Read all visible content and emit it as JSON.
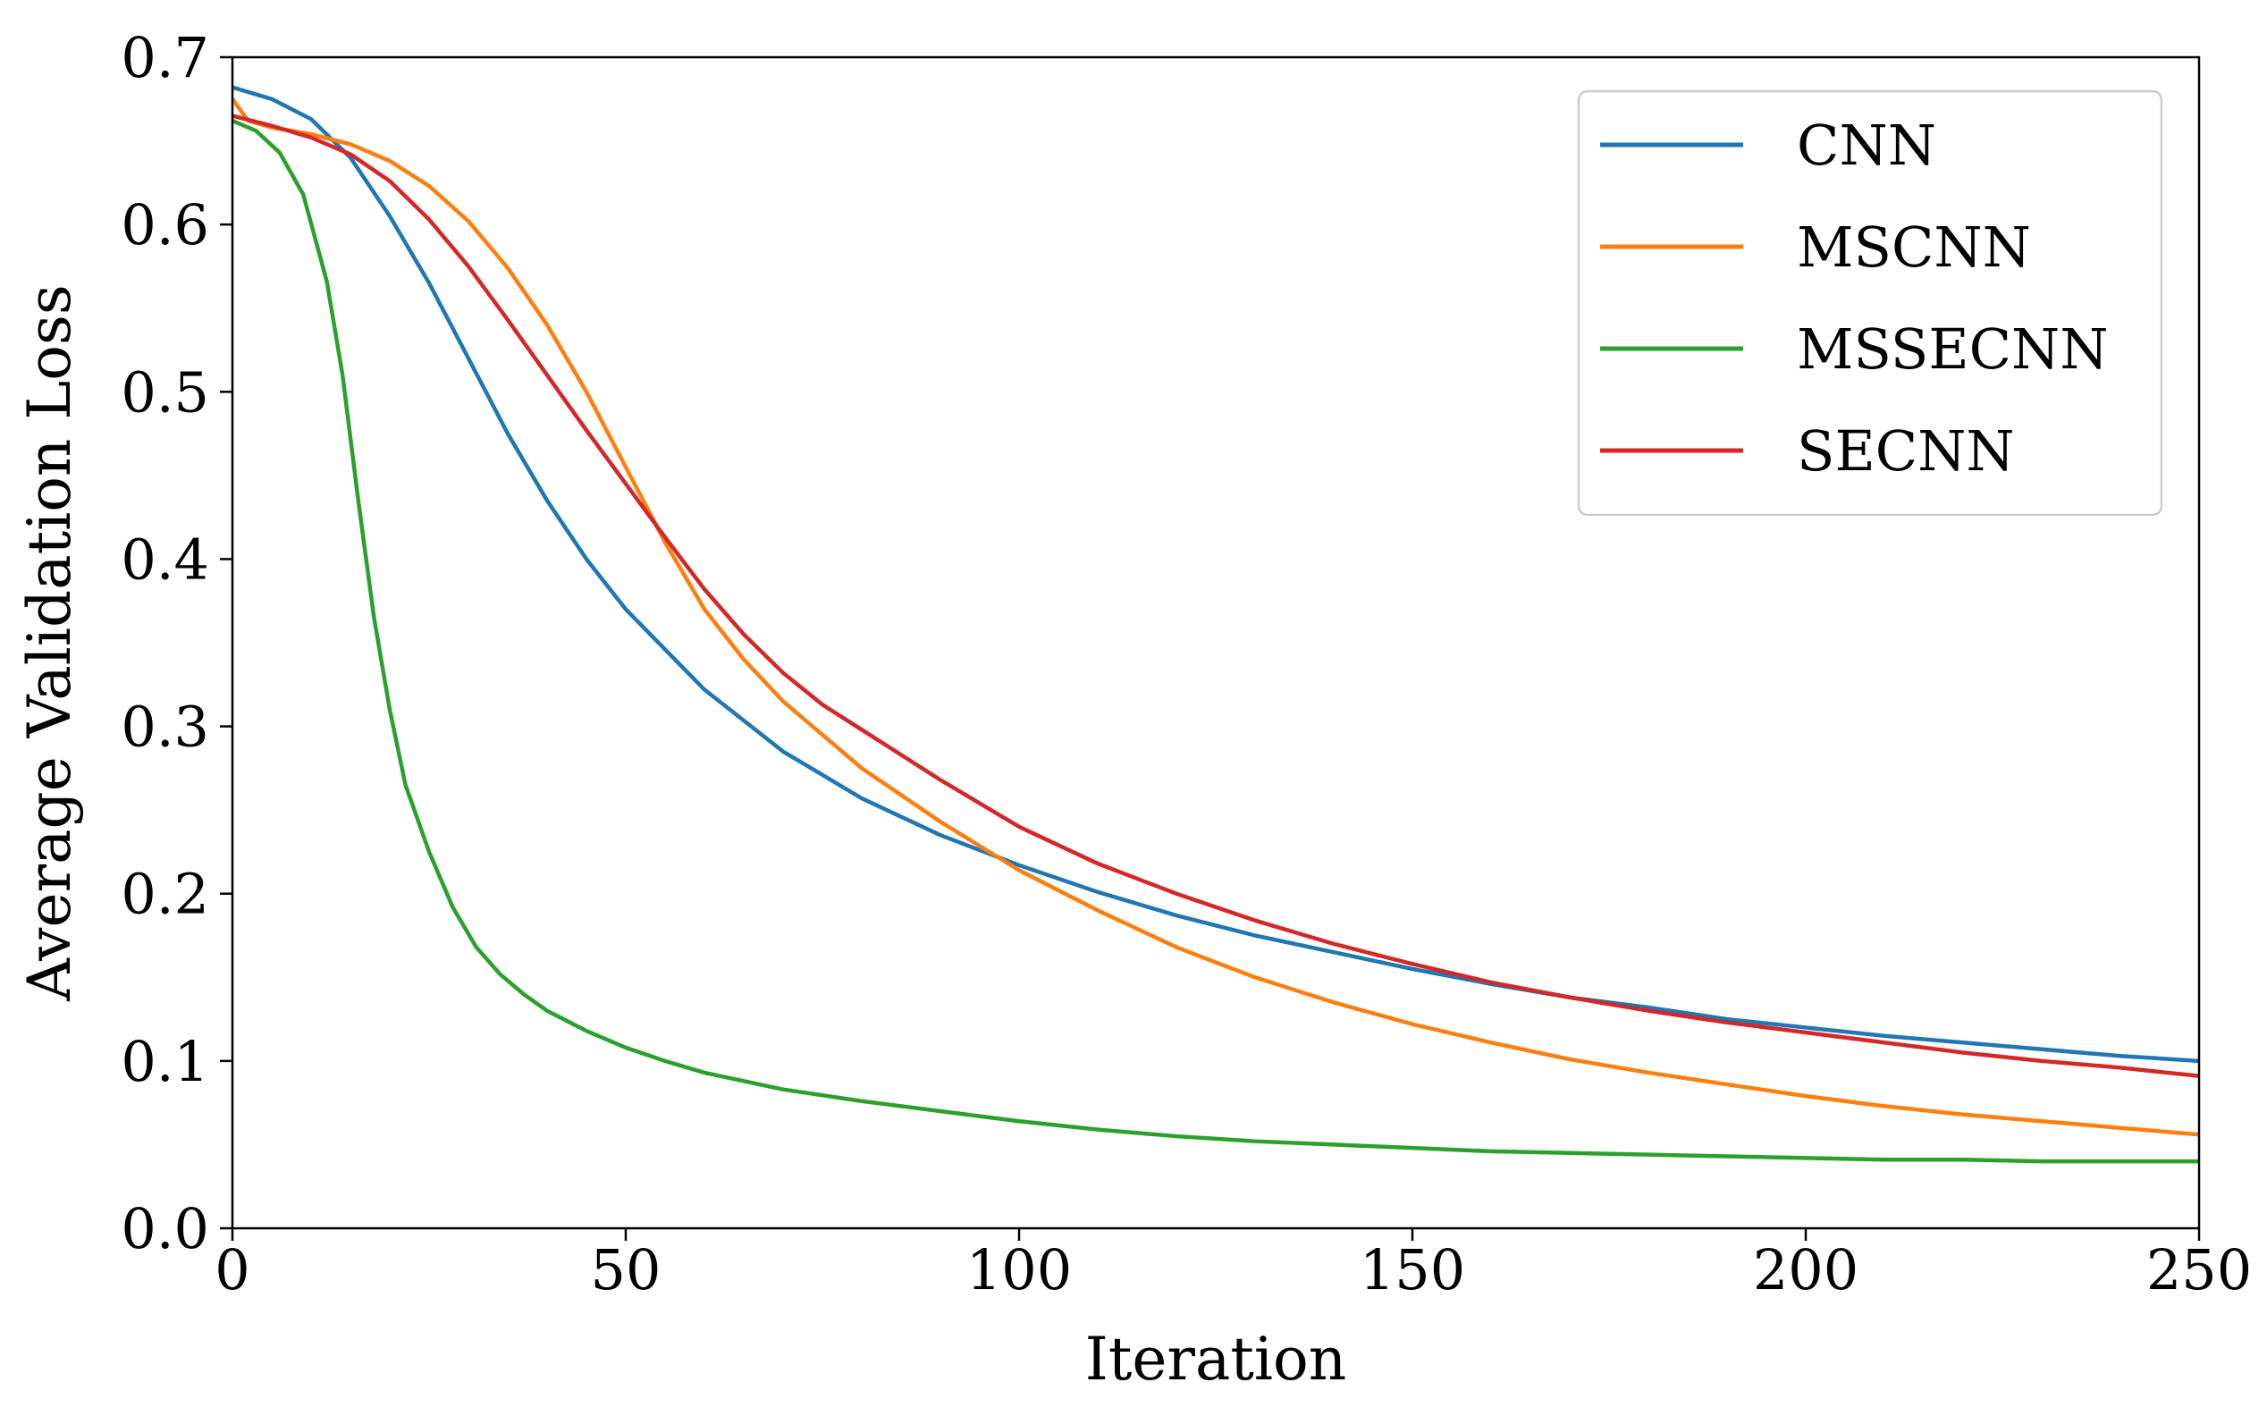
{
  "chart_data": {
    "type": "line",
    "title": "",
    "xlabel": "Iteration",
    "ylabel": "Average Validation Loss",
    "xlim": [
      0,
      250
    ],
    "ylim": [
      0,
      0.7
    ],
    "xticks": [
      0,
      50,
      100,
      150,
      200,
      250
    ],
    "xtick_labels": [
      "0",
      "50",
      "100",
      "150",
      "200",
      "250"
    ],
    "yticks": [
      0,
      0.1,
      0.2,
      0.3,
      0.4,
      0.5,
      0.6,
      0.7
    ],
    "ytick_labels": [
      "0.0",
      "0.1",
      "0.2",
      "0.3",
      "0.4",
      "0.5",
      "0.6",
      "0.7"
    ],
    "grid": false,
    "legend_position": "top-right",
    "series": [
      {
        "name": "CNN",
        "color": "#1f77b4",
        "x": [
          0,
          5,
          10,
          15,
          20,
          25,
          30,
          35,
          40,
          45,
          50,
          60,
          70,
          80,
          90,
          100,
          110,
          120,
          130,
          140,
          150,
          160,
          170,
          180,
          190,
          200,
          210,
          220,
          230,
          240,
          250
        ],
        "y": [
          0.682,
          0.675,
          0.663,
          0.64,
          0.605,
          0.565,
          0.52,
          0.475,
          0.435,
          0.4,
          0.37,
          0.322,
          0.285,
          0.257,
          0.235,
          0.217,
          0.201,
          0.187,
          0.175,
          0.165,
          0.155,
          0.146,
          0.138,
          0.132,
          0.125,
          0.12,
          0.115,
          0.111,
          0.107,
          0.103,
          0.1
        ]
      },
      {
        "name": "MSCNN",
        "color": "#ff7f0e",
        "x": [
          0,
          2,
          5,
          10,
          15,
          20,
          25,
          30,
          35,
          40,
          45,
          50,
          55,
          60,
          65,
          70,
          75,
          80,
          90,
          100,
          110,
          120,
          130,
          140,
          150,
          160,
          170,
          180,
          190,
          200,
          210,
          220,
          230,
          240,
          250
        ],
        "y": [
          0.675,
          0.662,
          0.658,
          0.654,
          0.648,
          0.638,
          0.623,
          0.602,
          0.574,
          0.54,
          0.5,
          0.455,
          0.41,
          0.37,
          0.34,
          0.315,
          0.295,
          0.275,
          0.243,
          0.214,
          0.19,
          0.168,
          0.15,
          0.135,
          0.122,
          0.111,
          0.101,
          0.093,
          0.086,
          0.079,
          0.073,
          0.068,
          0.064,
          0.06,
          0.056
        ]
      },
      {
        "name": "MSSECNN",
        "color": "#2ca02c",
        "x": [
          0,
          3,
          6,
          9,
          12,
          14,
          16,
          18,
          20,
          22,
          25,
          28,
          31,
          34,
          37,
          40,
          45,
          50,
          55,
          60,
          70,
          80,
          90,
          100,
          110,
          120,
          130,
          140,
          150,
          160,
          170,
          180,
          190,
          200,
          210,
          220,
          230,
          240,
          250
        ],
        "y": [
          0.662,
          0.656,
          0.643,
          0.618,
          0.566,
          0.51,
          0.435,
          0.365,
          0.31,
          0.265,
          0.225,
          0.192,
          0.168,
          0.152,
          0.14,
          0.13,
          0.118,
          0.108,
          0.1,
          0.093,
          0.083,
          0.076,
          0.07,
          0.064,
          0.059,
          0.055,
          0.052,
          0.05,
          0.048,
          0.046,
          0.045,
          0.044,
          0.043,
          0.042,
          0.041,
          0.041,
          0.04,
          0.04,
          0.04
        ]
      },
      {
        "name": "SECNN",
        "color": "#d62728",
        "x": [
          0,
          5,
          10,
          15,
          20,
          25,
          30,
          35,
          40,
          45,
          50,
          55,
          60,
          65,
          70,
          75,
          80,
          90,
          100,
          110,
          120,
          130,
          140,
          150,
          160,
          170,
          180,
          190,
          200,
          210,
          220,
          230,
          240,
          250
        ],
        "y": [
          0.665,
          0.659,
          0.652,
          0.642,
          0.626,
          0.603,
          0.575,
          0.543,
          0.51,
          0.477,
          0.445,
          0.413,
          0.382,
          0.355,
          0.332,
          0.313,
          0.298,
          0.268,
          0.24,
          0.218,
          0.2,
          0.184,
          0.17,
          0.158,
          0.147,
          0.138,
          0.13,
          0.123,
          0.117,
          0.111,
          0.105,
          0.1,
          0.096,
          0.091
        ]
      }
    ]
  }
}
